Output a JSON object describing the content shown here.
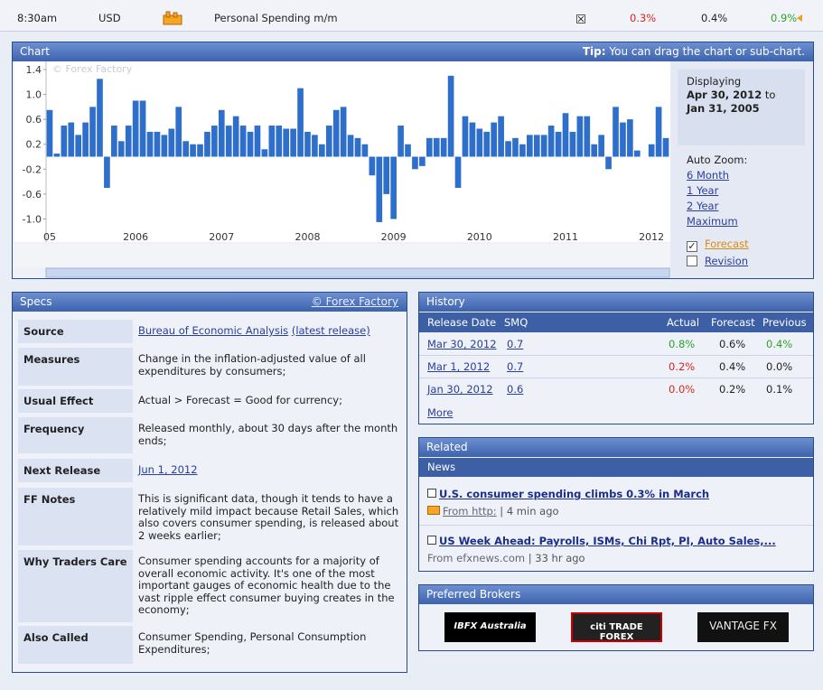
{
  "top_bar": {
    "time": "8:30am",
    "currency": "USD",
    "event": "Personal Spending m/m",
    "actual": "0.3%",
    "forecast": "0.4%",
    "previous": "0.9%"
  },
  "chart_panel": {
    "title": "Chart",
    "tip_label": "Tip:",
    "tip": "You can drag the chart or sub-chart.",
    "watermark": "© Forex Factory",
    "displaying_label": "Displaying",
    "from": "Apr 30, 2012",
    "to_word": "to",
    "to": "Jan 31, 2005",
    "auto_zoom": "Auto Zoom:",
    "zoom_options": [
      "6 Month",
      "1 Year",
      "2 Year",
      "Maximum"
    ],
    "checkboxes": [
      {
        "label": "Forecast",
        "checked": true
      },
      {
        "label": "Revision",
        "checked": false
      }
    ]
  },
  "chart_data": {
    "type": "bar",
    "color": "#2f6fcc",
    "categories": [
      "05",
      null,
      null,
      null,
      null,
      null,
      null,
      null,
      null,
      null,
      null,
      null,
      "2006",
      null,
      null,
      null,
      null,
      null,
      null,
      null,
      null,
      null,
      null,
      null,
      "2007",
      null,
      null,
      null,
      null,
      null,
      null,
      null,
      null,
      null,
      null,
      null,
      "2008",
      null,
      null,
      null,
      null,
      null,
      null,
      null,
      null,
      null,
      null,
      null,
      "2009",
      null,
      null,
      null,
      null,
      null,
      null,
      null,
      null,
      null,
      null,
      null,
      "2010",
      null,
      null,
      null,
      null,
      null,
      null,
      null,
      null,
      null,
      null,
      null,
      "2011",
      null,
      null,
      null,
      null,
      null,
      null,
      null,
      null,
      null,
      null,
      null,
      "2012",
      null,
      null
    ],
    "values": [
      0.75,
      0.05,
      0.5,
      0.55,
      0.35,
      0.55,
      0.8,
      1.25,
      -0.5,
      0.5,
      0.25,
      0.5,
      0.9,
      0.9,
      0.4,
      0.4,
      0.35,
      0.45,
      0.8,
      0.25,
      0.2,
      0.2,
      0.4,
      0.5,
      0.75,
      0.5,
      0.65,
      0.5,
      0.4,
      0.5,
      0.12,
      0.5,
      0.5,
      0.45,
      0.45,
      1.1,
      0.4,
      0.35,
      0.2,
      0.5,
      0.75,
      0.8,
      0.35,
      0.3,
      0.2,
      -0.3,
      -1.05,
      -0.6,
      -1.0,
      0.5,
      0.2,
      -0.2,
      -0.15,
      0.3,
      0.3,
      0.3,
      1.3,
      -0.5,
      0.65,
      0.55,
      0.45,
      0.4,
      0.55,
      0.65,
      0.25,
      0.3,
      0.2,
      0.35,
      0.35,
      0.35,
      0.5,
      0.4,
      0.7,
      0.4,
      0.65,
      0.65,
      0.2,
      0.35,
      -0.2,
      0.8,
      0.55,
      0.6,
      0.1,
      0.0,
      0.2,
      0.8,
      0.3
    ],
    "ylim": [
      -1.37,
      1.53
    ],
    "yticks": [
      1.4,
      {
        "value": 1,
        "label": "1.0"
      },
      0.6,
      0.2,
      -0.2,
      -0.6,
      {
        "value": -1,
        "label": "-1.0"
      }
    ]
  },
  "specs": {
    "title": "Specs",
    "link": "© Forex Factory",
    "rows": [
      {
        "label": "Source",
        "value": "Bureau of Economic Analysis",
        "extra": "(latest release)"
      },
      {
        "label": "Measures",
        "value": "Change in the inflation-adjusted value of all expenditures by consumers;"
      },
      {
        "label": "Usual Effect",
        "value": "Actual > Forecast = Good for currency;"
      },
      {
        "label": "Frequency",
        "value": "Released monthly, about 30 days after the month ends;"
      },
      {
        "label": "Next Release",
        "value": "Jun 1, 2012"
      },
      {
        "label": "FF Notes",
        "value": "This is significant data, though it tends to have a relatively mild impact because Retail Sales, which also covers consumer spending, is released about 2 weeks earlier;"
      },
      {
        "label": "Why Traders Care",
        "value": "Consumer spending accounts for a majority of overall economic activity. It's one of the most important gauges of economic health due to the vast ripple effect consumer buying creates in the economy;"
      },
      {
        "label": "Also Called",
        "value": "Consumer Spending, Personal Consumption Expenditures;"
      }
    ]
  },
  "history": {
    "title": "History",
    "headers": [
      "Release Date",
      "SMQ",
      "Actual",
      "Forecast",
      "Previous"
    ],
    "rows": [
      [
        "Mar 30, 2012",
        "0.7",
        "0.8%",
        "0.6%",
        "0.4%"
      ],
      [
        "Mar 1, 2012",
        "0.7",
        "0.2%",
        "0.4%",
        "0.0%"
      ],
      [
        "Jan 30, 2012",
        "0.6",
        "0.0%",
        "0.2%",
        "0.1%"
      ]
    ],
    "more": "More"
  },
  "related": {
    "title": "Related",
    "tab": "News",
    "items": [
      {
        "title": "U.S. consumer spending climbs 0.3% in March",
        "source": "From http:",
        "time": "| 4 min ago"
      },
      {
        "title": "US Week Ahead: Payrolls, ISMs, Chi Rpt, PI, Auto Sales,...",
        "source": "From efxnews.com",
        "time": "| 33 hr ago"
      }
    ]
  },
  "brokers": {
    "title": "Preferred Brokers",
    "names": [
      "IBFX Australia",
      "citi TRADE FOREX",
      "VANTAGE FX"
    ]
  }
}
